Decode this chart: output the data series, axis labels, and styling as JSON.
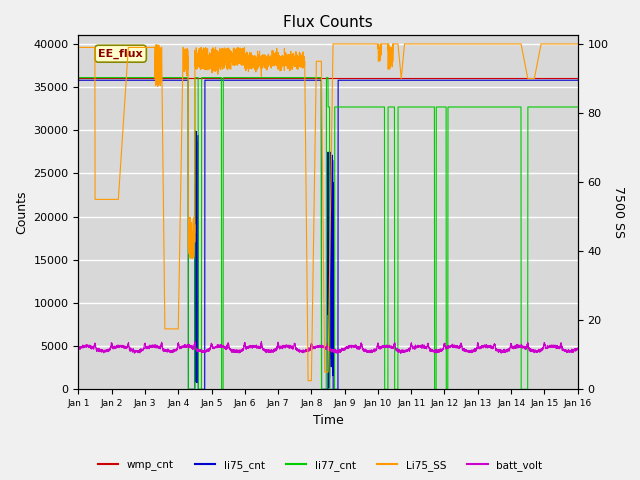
{
  "title": "Flux Counts",
  "xlabel": "Time",
  "ylabel_left": "Counts",
  "ylabel_right": "7500 SS",
  "xlim_days": [
    0,
    15
  ],
  "ylim_left": [
    0,
    41000
  ],
  "ylim_right": [
    0,
    102.5
  ],
  "tick_labels": [
    "Jan 1",
    "Jan 2",
    "Jan 3",
    "Jan 4",
    "Jan 5",
    "Jan 6",
    "Jan 7",
    "Jan 8",
    "Jan 9",
    "Jan 10",
    "Jan 11",
    "Jan 12",
    "Jan 13",
    "Jan 14",
    "Jan 15",
    "Jan 16"
  ],
  "annotation_text": "EE_flux",
  "colors": {
    "wmp_cnt": "#cc0000",
    "li75_cnt": "#0000cc",
    "li77_cnt": "#00cc00",
    "Li75_SS": "#ff9900",
    "batt_volt": "#cc00cc"
  },
  "background_color": "#d8d8d8",
  "fig_background": "#f0f0f0",
  "grid_color": "#ffffff",
  "figsize": [
    6.4,
    4.8
  ],
  "dpi": 100
}
